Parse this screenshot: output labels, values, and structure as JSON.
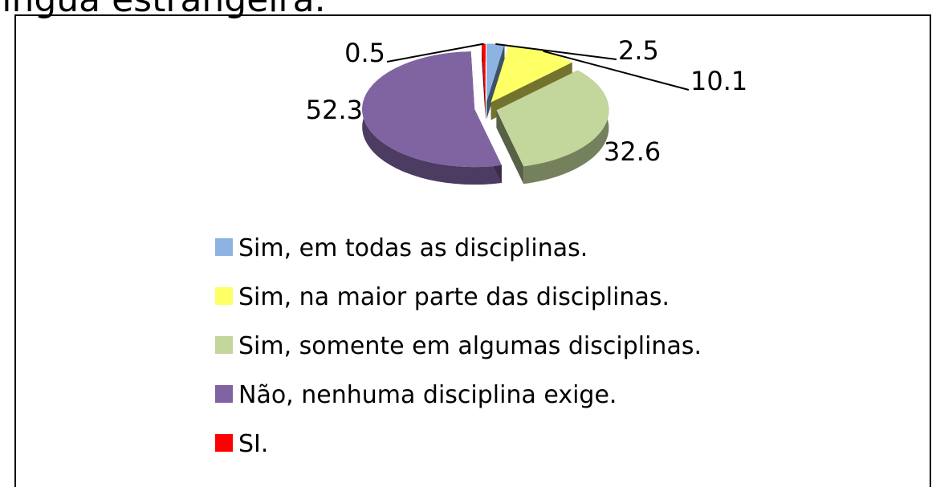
{
  "chart_data": {
    "type": "pie",
    "title": "língua estrangeira.",
    "categories": [
      "Sim, em todas as disciplinas.",
      "Sim, na maior parte das disciplinas.",
      "Sim, somente em algumas disciplinas.",
      "Não, nenhuma disciplina exige.",
      "SI."
    ],
    "values": [
      2.5,
      10.1,
      32.6,
      52.3,
      0.5
    ],
    "colors": [
      "#8db3e2",
      "#ffff66",
      "#c3d69b",
      "#8064a2",
      "#ff0000"
    ],
    "legend": "bottom"
  }
}
